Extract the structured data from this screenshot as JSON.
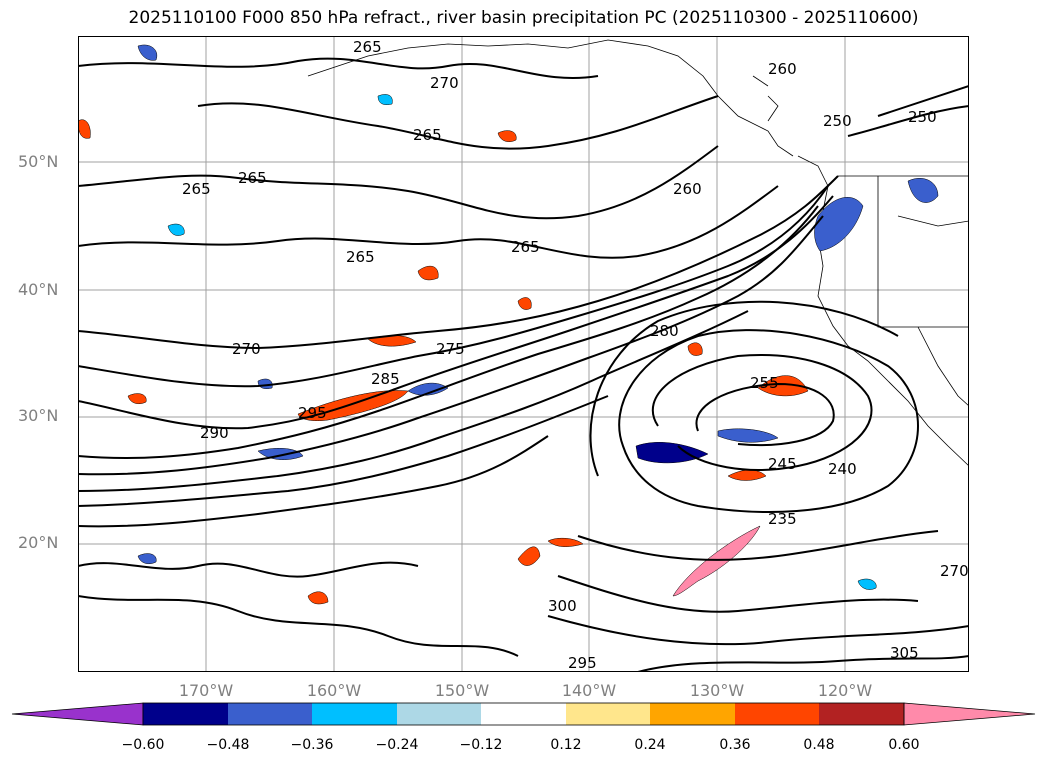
{
  "title": "2025110100 F000 850 hPa refract., river basin precipitation PC (2025110300 - 2025110600)",
  "lat_labels": [
    "50°N",
    "40°N",
    "30°N",
    "20°N"
  ],
  "lon_labels": [
    "170°W",
    "160°W",
    "150°W",
    "140°W",
    "130°W",
    "120°W"
  ],
  "colorbar": {
    "ticks": [
      "−0.60",
      "−0.48",
      "−0.36",
      "−0.24",
      "−0.12",
      "0.12",
      "0.24",
      "0.36",
      "0.48",
      "0.60"
    ],
    "colors": [
      "#9932cc",
      "#00008b",
      "#3a5fcd",
      "#00bfff",
      "#add8e6",
      "#ffffff",
      "#ffe68c",
      "#ffa500",
      "#ff4500",
      "#b22222",
      "#ff8aaa"
    ]
  },
  "contour_labels": [
    "265",
    "270",
    "265",
    "265",
    "265",
    "265",
    "260",
    "265",
    "270",
    "275",
    "280",
    "285",
    "290",
    "295",
    "255",
    "250",
    "245",
    "240",
    "235",
    "305",
    "300",
    "295",
    "270",
    "260",
    "250"
  ],
  "colors": {
    "contour": "#000000",
    "grid": "#a0a0a0",
    "axis_label": "#808080"
  }
}
